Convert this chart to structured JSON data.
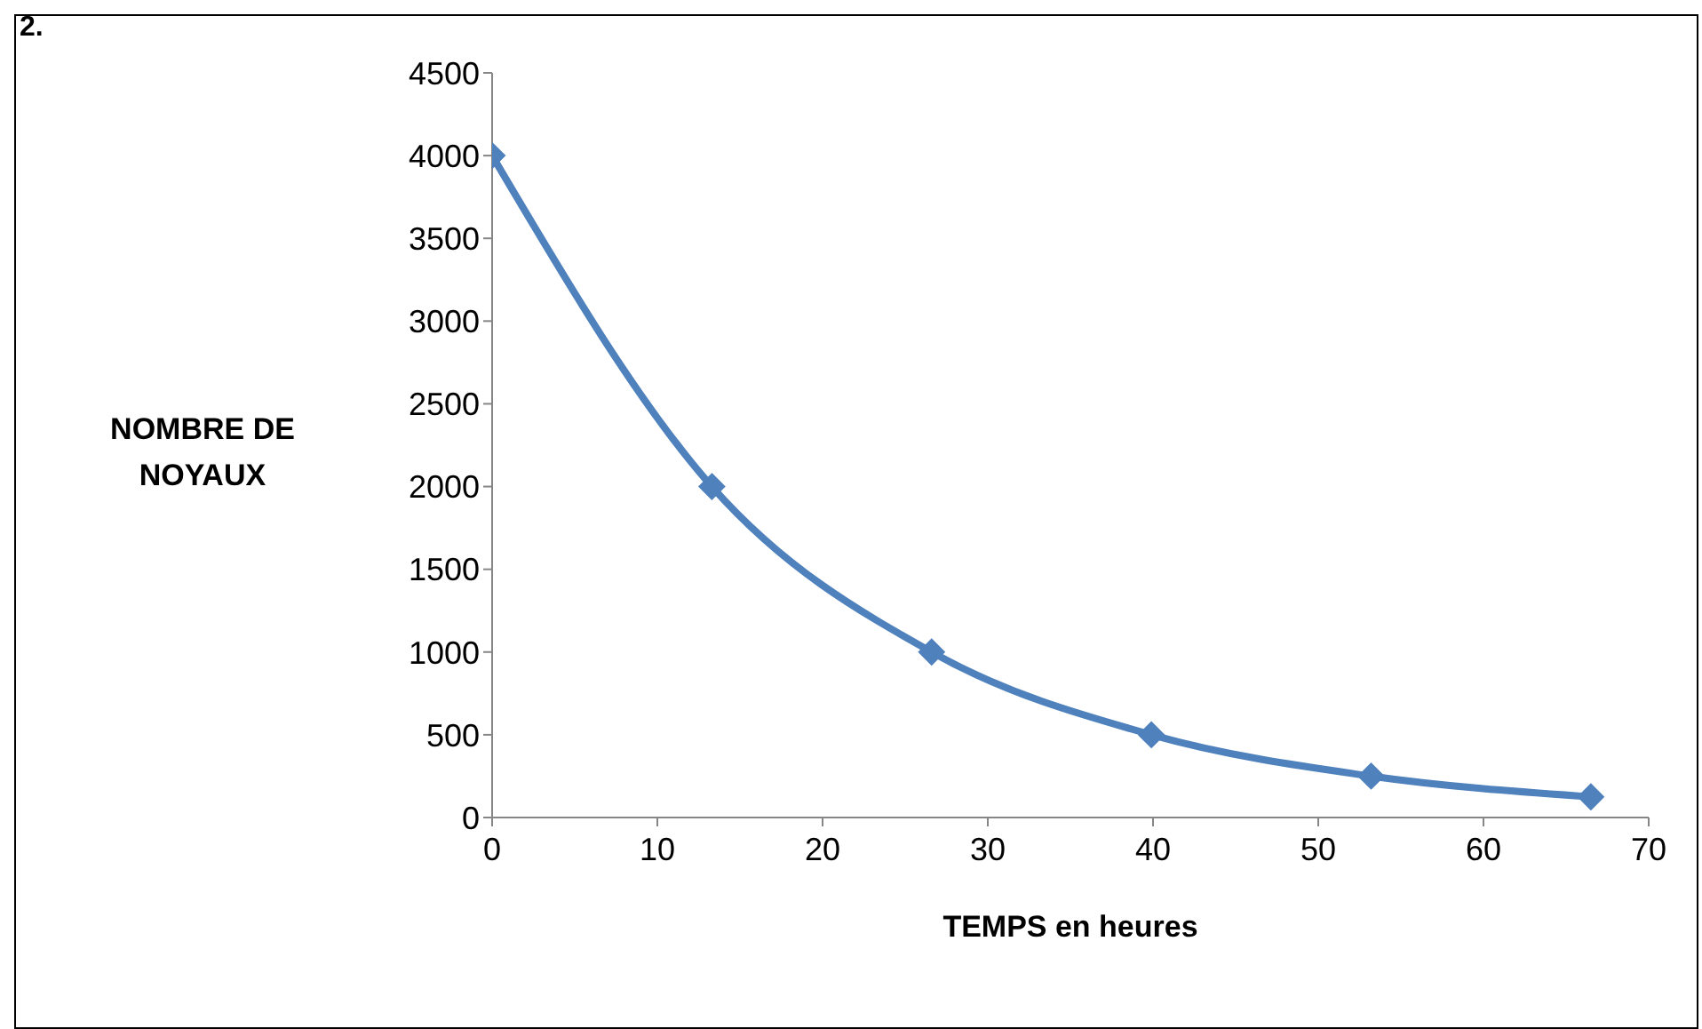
{
  "chart_data": {
    "type": "line",
    "xlabel": "TEMPS en heures",
    "ylabel": "NOMBRE DE NOYAUX",
    "annotations": [
      "2."
    ],
    "x": [
      0,
      13.3,
      26.6,
      39.9,
      53.2,
      66.5
    ],
    "series": [
      {
        "color": "#4f81bd",
        "values": [
          4000,
          2000,
          1000,
          500,
          250,
          125
        ]
      }
    ],
    "xlim": [
      0,
      70
    ],
    "xticks": [
      0,
      10,
      20,
      30,
      40,
      50,
      60,
      70
    ],
    "ylim": [
      0,
      4500
    ],
    "yticks": [
      0,
      500,
      1000,
      1500,
      2000,
      2500,
      3000,
      3500,
      4000,
      4500
    ],
    "grid": false,
    "legend": false,
    "marker": "diamond",
    "line_style": "solid"
  }
}
